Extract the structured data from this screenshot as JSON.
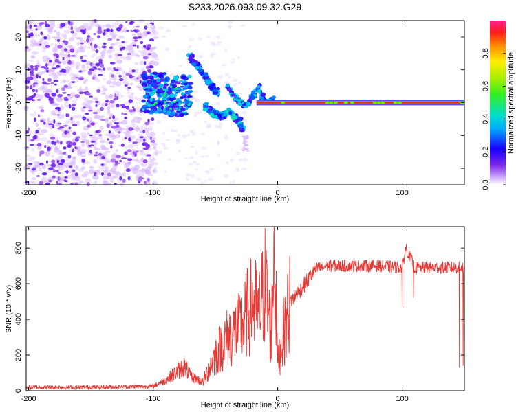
{
  "title": "S233.2026.093.09.32.G29",
  "chart_data": [
    {
      "type": "heatmap",
      "name": "spectrogram",
      "xlabel": "Height of straight line (km)",
      "ylabel": "Frequency (Hz)",
      "xlim": [
        -202,
        150
      ],
      "ylim": [
        -25,
        25
      ],
      "xticks": [
        -200,
        -100,
        0,
        100
      ],
      "yticks": [
        -20,
        -10,
        0,
        10,
        20
      ],
      "colorbar": {
        "label": "Normalized spectral amplitude",
        "range": [
          0,
          1
        ],
        "ticks": [
          0.0,
          0.2,
          0.4,
          0.6,
          0.8
        ],
        "tick_labels": [
          "0.0",
          "0.2",
          "0.4",
          "0.6",
          "0.8"
        ]
      },
      "features": {
        "noise_region_x": [
          -202,
          -100
        ],
        "scatter_band_x": [
          -108,
          -70
        ],
        "upper_arc": [
          [
            -70,
            14
          ],
          [
            -62,
            10
          ],
          [
            -55,
            6
          ],
          [
            -48,
            3
          ]
        ],
        "lower_arc": [
          [
            -58,
            -1
          ],
          [
            -52,
            -3
          ],
          [
            -45,
            -4
          ],
          [
            -38,
            -3
          ],
          [
            -32,
            -5
          ],
          [
            -28,
            -8
          ]
        ],
        "line_start_x": -25,
        "tone_frequency": 0,
        "tone_end_x": 150
      }
    },
    {
      "type": "line",
      "name": "snr",
      "xlabel": "Height of straight line (km)",
      "ylabel": "SNR (10 * v/v)",
      "xlim": [
        -202,
        150
      ],
      "ylim": [
        0,
        920
      ],
      "xticks": [
        -200,
        -100,
        0,
        100
      ],
      "yticks": [
        0,
        200,
        400,
        600,
        800
      ],
      "color": "#e53935",
      "series": [
        {
          "name": "SNR",
          "key_points": [
            [
              -202,
              20
            ],
            [
              -150,
              20
            ],
            [
              -100,
              25
            ],
            [
              -90,
              60
            ],
            [
              -80,
              110
            ],
            [
              -75,
              140
            ],
            [
              -70,
              80
            ],
            [
              -60,
              50
            ],
            [
              -50,
              200
            ],
            [
              -40,
              300
            ],
            [
              -30,
              350
            ],
            [
              -20,
              500
            ],
            [
              -15,
              430
            ],
            [
              -10,
              600
            ],
            [
              -5,
              300
            ],
            [
              -3,
              900
            ],
            [
              0,
              150
            ],
            [
              10,
              500
            ],
            [
              20,
              580
            ],
            [
              30,
              680
            ],
            [
              40,
              700
            ],
            [
              60,
              700
            ],
            [
              80,
              700
            ],
            [
              100,
              690
            ],
            [
              103,
              800
            ],
            [
              110,
              690
            ],
            [
              130,
              690
            ],
            [
              145,
              690
            ],
            [
              150,
              690
            ]
          ],
          "dropouts": [
            [
              100,
              470
            ],
            [
              109,
              520
            ],
            [
              146,
              130
            ],
            [
              149,
              140
            ]
          ]
        }
      ]
    }
  ]
}
